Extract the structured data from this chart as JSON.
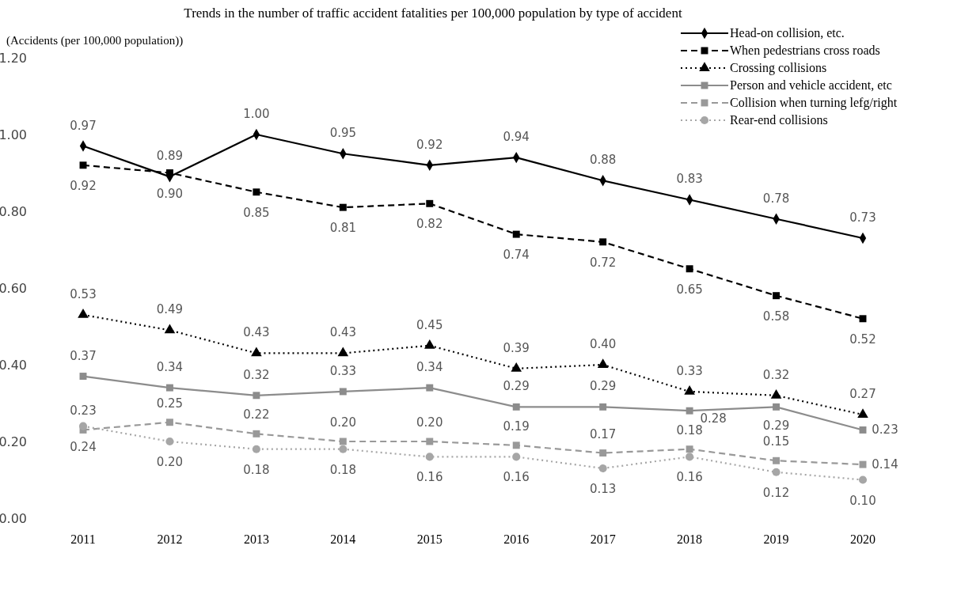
{
  "chart_data": {
    "type": "line",
    "title": "Trends in the number of traffic accident fatalities per 100,000 population by type of accident",
    "ylabel": "(Accidents (per 100,000 population))",
    "categories": [
      "2011",
      "2012",
      "2013",
      "2014",
      "2015",
      "2016",
      "2017",
      "2018",
      "2019",
      "2020"
    ],
    "series": [
      {
        "name": "Head-on collision, etc.",
        "color": "#000000",
        "marker": "diamond",
        "line_style": "solid",
        "values": [
          0.97,
          0.89,
          1.0,
          0.95,
          0.92,
          0.94,
          0.88,
          0.83,
          0.78,
          0.73
        ],
        "value_labels": [
          "0.97",
          "0.89",
          "1.00",
          "0.95",
          "0.92",
          "0.94",
          "0.88",
          "0.83",
          "0.78",
          "0.73"
        ]
      },
      {
        "name": "When pedestrians cross roads",
        "color": "#000000",
        "marker": "square",
        "line_style": "dashed",
        "values": [
          0.92,
          0.9,
          0.85,
          0.81,
          0.82,
          0.74,
          0.72,
          0.65,
          0.58,
          0.52
        ],
        "value_labels": [
          "0.92",
          "0.90",
          "0.85",
          "0.81",
          "0.82",
          "0.74",
          "0.72",
          "0.65",
          "0.58",
          "0.52"
        ]
      },
      {
        "name": "Crossing collisions",
        "color": "#000000",
        "marker": "triangle",
        "line_style": "dotted",
        "values": [
          0.53,
          0.49,
          0.43,
          0.43,
          0.45,
          0.39,
          0.4,
          0.33,
          0.32,
          0.27
        ],
        "value_labels": [
          "0.53",
          "0.49",
          "0.43",
          "0.43",
          "0.45",
          "0.39",
          "0.40",
          "0.33",
          "0.32",
          "0.27"
        ]
      },
      {
        "name": "Person and vehicle accident, etc",
        "color": "#8c8c8c",
        "marker": "square",
        "line_style": "solid",
        "values": [
          0.37,
          0.34,
          0.32,
          0.33,
          0.34,
          0.29,
          0.29,
          0.28,
          0.29,
          0.23
        ],
        "value_labels": [
          "0.37",
          "0.34",
          "0.32",
          "0.33",
          "0.34",
          "0.29",
          "0.29",
          "0.28",
          "0.29",
          "0.23"
        ]
      },
      {
        "name": "Collision when turning lefg/right",
        "color": "#999999",
        "marker": "square",
        "line_style": "dashed",
        "values": [
          0.23,
          0.25,
          0.22,
          0.2,
          0.2,
          0.19,
          0.17,
          0.18,
          0.15,
          0.14
        ],
        "value_labels": [
          "0.23",
          "0.25",
          "0.22",
          "0.20",
          "0.20",
          "0.19",
          "0.17",
          "0.18",
          "0.15",
          "0.14"
        ]
      },
      {
        "name": "Rear-end collisions",
        "color": "#a6a6a6",
        "marker": "circle",
        "line_style": "dotted",
        "values": [
          0.24,
          0.2,
          0.18,
          0.18,
          0.16,
          0.16,
          0.13,
          0.16,
          0.12,
          0.1
        ],
        "value_labels": [
          "0.24",
          "0.20",
          "0.18",
          "0.18",
          "0.16",
          "0.16",
          "0.13",
          "0.16",
          "0.12",
          "0.10"
        ]
      }
    ],
    "ylim": [
      0,
      1.2
    ],
    "yticks": [
      {
        "value": 0,
        "label": "0.00"
      },
      {
        "value": 0.2,
        "label": "0.20"
      },
      {
        "value": 0.4,
        "label": "0.40"
      },
      {
        "value": 0.6,
        "label": "0.60"
      },
      {
        "value": 0.8,
        "label": "0.80"
      },
      {
        "value": 1.0,
        "label": "1.00"
      },
      {
        "value": 1.2,
        "label": "1.20"
      }
    ],
    "grid": false,
    "legend": "top right"
  }
}
